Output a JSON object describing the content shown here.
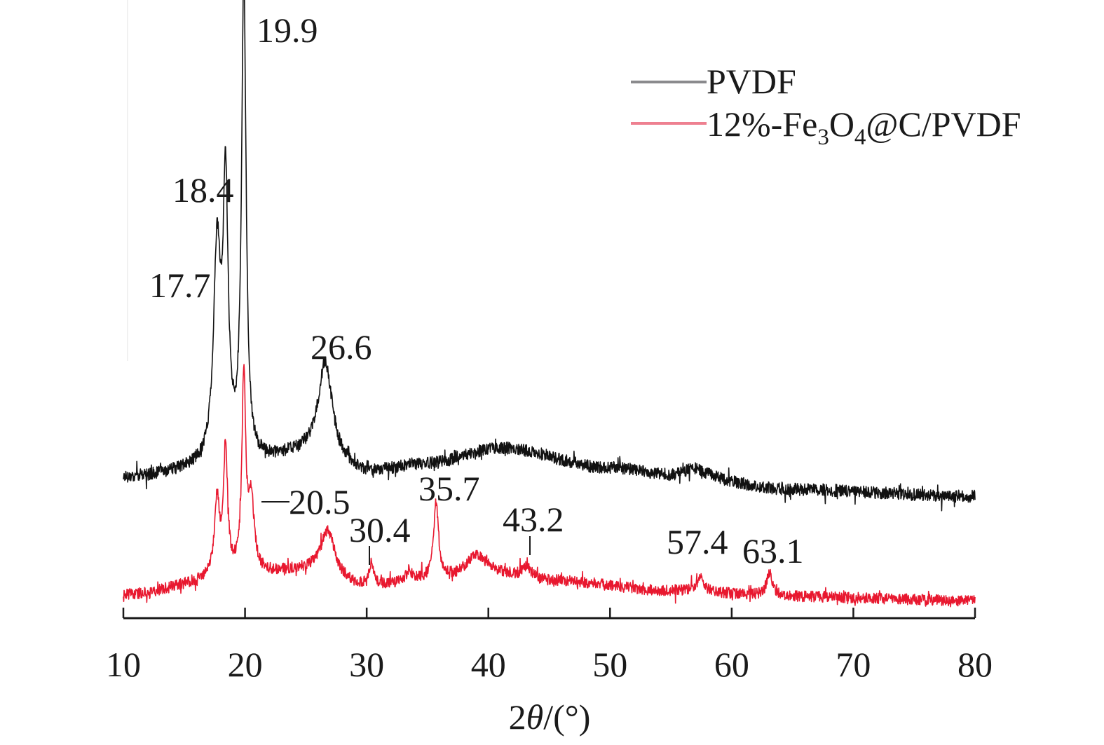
{
  "chart_data": {
    "type": "line",
    "title": "",
    "xlabel_parts": [
      "2",
      "θ",
      "/(°)"
    ],
    "xlabel": "2θ/(°)",
    "ylabel": "",
    "xlim": [
      10,
      80
    ],
    "xticks": [
      10,
      20,
      30,
      40,
      50,
      60,
      70,
      80
    ],
    "xtick_labels": [
      "10",
      "20",
      "30",
      "40",
      "50",
      "60",
      "70",
      "80"
    ],
    "y_axis_shown": false,
    "grid": false,
    "legend_position": "top-right",
    "series": [
      {
        "name": "PVDF",
        "legend_parts": [
          "PVDF"
        ],
        "color": "#111111",
        "legend_color": "#8a8a8d",
        "baseline_intensity": [
          [
            10,
            1.0
          ],
          [
            20,
            1.6
          ],
          [
            25,
            2.0
          ],
          [
            30,
            1.2
          ],
          [
            35,
            1.6
          ],
          [
            41,
            2.3
          ],
          [
            50,
            1.4
          ],
          [
            57,
            0.9
          ],
          [
            65,
            0.45
          ],
          [
            80,
            0.15
          ]
        ],
        "peaks": [
          {
            "x": 17.7,
            "intensity": 9.2,
            "width": 0.35,
            "label": "17.7"
          },
          {
            "x": 18.4,
            "intensity": 11.8,
            "width": 0.25,
            "label": "18.4"
          },
          {
            "x": 19.9,
            "intensity": 21.5,
            "width": 0.22,
            "label": "19.9"
          },
          {
            "x": 26.6,
            "intensity": 4.3,
            "width": 0.7,
            "label": "26.6"
          },
          {
            "x": 57.0,
            "intensity": 0.5,
            "width": 1.2,
            "label": ""
          }
        ]
      },
      {
        "name": "12%-Fe3O4@C/PVDF",
        "legend_parts": [
          "12%-Fe",
          "3",
          "O",
          "4",
          "@C/PVDF"
        ],
        "color": "#e8182f",
        "legend_color": "#ee8090",
        "baseline_intensity": [
          [
            10,
            0.3
          ],
          [
            20,
            1.3
          ],
          [
            25,
            1.5
          ],
          [
            30,
            0.7
          ],
          [
            35,
            1.0
          ],
          [
            40,
            1.4
          ],
          [
            45,
            1.0
          ],
          [
            55,
            0.5
          ],
          [
            65,
            0.2
          ],
          [
            80,
            0.0
          ]
        ],
        "peaks": [
          {
            "x": 17.7,
            "intensity": 3.8,
            "width": 0.25,
            "label": ""
          },
          {
            "x": 18.4,
            "intensity": 6.2,
            "width": 0.2,
            "label": ""
          },
          {
            "x": 19.9,
            "intensity": 9.8,
            "width": 0.18,
            "label": ""
          },
          {
            "x": 20.5,
            "intensity": 3.6,
            "width": 0.3,
            "label": "20.5"
          },
          {
            "x": 26.8,
            "intensity": 2.2,
            "width": 0.7,
            "label": ""
          },
          {
            "x": 30.4,
            "intensity": 1.1,
            "width": 0.2,
            "label": "30.4"
          },
          {
            "x": 33.5,
            "intensity": 0.5,
            "width": 0.3,
            "label": ""
          },
          {
            "x": 35.7,
            "intensity": 3.8,
            "width": 0.25,
            "label": "35.7"
          },
          {
            "x": 39.0,
            "intensity": 0.9,
            "width": 0.9,
            "label": ""
          },
          {
            "x": 43.2,
            "intensity": 0.6,
            "width": 0.4,
            "label": "43.2"
          },
          {
            "x": 57.4,
            "intensity": 0.9,
            "width": 0.3,
            "label": "57.4"
          },
          {
            "x": 63.1,
            "intensity": 1.1,
            "width": 0.3,
            "label": "63.1"
          }
        ]
      }
    ],
    "annotations": [
      {
        "text": "19.9",
        "x": 19.9,
        "series": "PVDF"
      },
      {
        "text": "18.4",
        "x": 18.4,
        "series": "PVDF"
      },
      {
        "text": "17.7",
        "x": 17.7,
        "series": "PVDF"
      },
      {
        "text": "26.6",
        "x": 26.6,
        "series": "PVDF"
      },
      {
        "text": "20.5",
        "x": 20.5,
        "series": "12%-Fe3O4@C/PVDF",
        "leader": "horizontal"
      },
      {
        "text": "30.4",
        "x": 30.4,
        "series": "12%-Fe3O4@C/PVDF",
        "leader": "vertical"
      },
      {
        "text": "35.7",
        "x": 35.7,
        "series": "12%-Fe3O4@C/PVDF"
      },
      {
        "text": "43.2",
        "x": 43.2,
        "series": "12%-Fe3O4@C/PVDF",
        "leader": "vertical"
      },
      {
        "text": "57.4",
        "x": 57.4,
        "series": "12%-Fe3O4@C/PVDF"
      },
      {
        "text": "63.1",
        "x": 63.1,
        "series": "12%-Fe3O4@C/PVDF"
      }
    ]
  }
}
